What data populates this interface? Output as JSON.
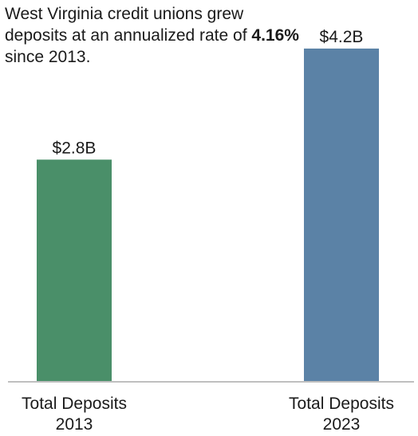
{
  "annotation": {
    "before": "West Virginia credit unions grew deposits at an annualized rate of ",
    "highlight": "4.16%",
    "after": " since 2013."
  },
  "chart_data": {
    "type": "bar",
    "categories": [
      "Total Deposits 2013",
      "Total Deposits 2023"
    ],
    "category_lines": [
      [
        "Total Deposits",
        "2013"
      ],
      [
        "Total Deposits",
        "2023"
      ]
    ],
    "values": [
      2.8,
      4.2
    ],
    "value_labels": [
      "$2.8B",
      "$4.2B"
    ],
    "colors": [
      "#4a8f69",
      "#5b82a6"
    ],
    "title": "",
    "xlabel": "",
    "ylabel": "",
    "ylim": [
      0,
      4.4
    ],
    "grid": false,
    "legend": "none"
  }
}
